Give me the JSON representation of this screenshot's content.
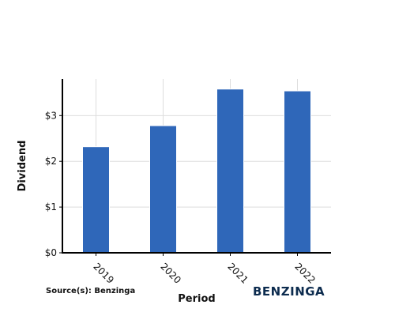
{
  "colors": {
    "bar": "#2f67b9",
    "axis": "#000000",
    "grid": "#dddddd",
    "brand": "#0d2c4f"
  },
  "chart_data": {
    "type": "bar",
    "categories": [
      "2019",
      "2020",
      "2021",
      "2022"
    ],
    "values": [
      2.32,
      2.78,
      3.58,
      3.54
    ],
    "xlabel": "Period",
    "ylabel": "Dividend",
    "ylim": [
      0,
      3.8
    ],
    "yticks": [
      0,
      1,
      2,
      3
    ],
    "ytick_labels": [
      "$0",
      "$1",
      "$2",
      "$3"
    ],
    "grid": true,
    "legend": "none"
  },
  "footer": {
    "source": "Source(s): Benzinga",
    "brand": "BENZINGA"
  }
}
